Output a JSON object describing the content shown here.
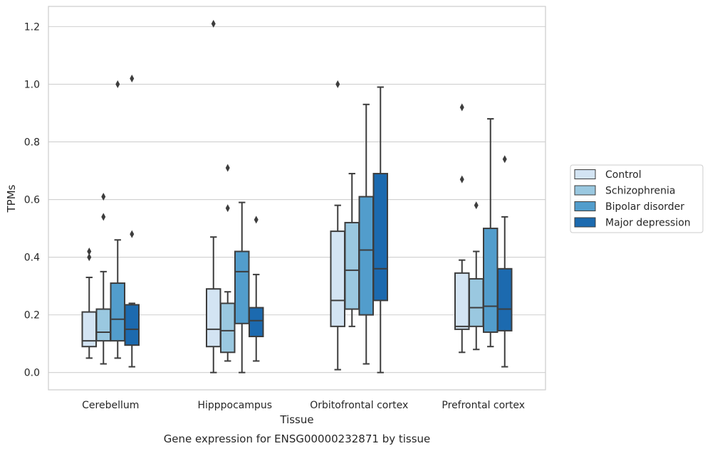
{
  "chart_data": {
    "type": "box",
    "xlabel": "Tissue",
    "ylabel": "TPMs",
    "caption": "Gene expression for ENSG00000232871 by tissue",
    "ylim": [
      -0.06,
      1.27
    ],
    "yticks": [
      "0.0",
      "0.2",
      "0.4",
      "0.6",
      "0.8",
      "1.0",
      "1.2"
    ],
    "grid": "horizontal",
    "legend_placement": "right",
    "categories": [
      "Cerebellum",
      "Hipppocampus",
      "Orbitofrontal cortex",
      "Prefrontal cortex"
    ],
    "series": [
      {
        "name": "Control",
        "color": "#d3e4f3",
        "boxes": [
          {
            "whislo": 0.05,
            "q1": 0.09,
            "med": 0.11,
            "q3": 0.21,
            "whishi": 0.33,
            "fliers": [
              0.4,
              0.42
            ]
          },
          {
            "whislo": 0.0,
            "q1": 0.09,
            "med": 0.15,
            "q3": 0.29,
            "whishi": 0.47,
            "fliers": [
              1.21
            ]
          },
          {
            "whislo": 0.01,
            "q1": 0.16,
            "med": 0.25,
            "q3": 0.49,
            "whishi": 0.58,
            "fliers": [
              1.0
            ]
          },
          {
            "whislo": 0.07,
            "q1": 0.15,
            "med": 0.16,
            "q3": 0.345,
            "whishi": 0.39,
            "fliers": [
              0.67,
              0.92
            ]
          }
        ]
      },
      {
        "name": "Schizophrenia",
        "color": "#9ac8e0",
        "boxes": [
          {
            "whislo": 0.03,
            "q1": 0.11,
            "med": 0.14,
            "q3": 0.22,
            "whishi": 0.35,
            "fliers": [
              0.54,
              0.61
            ]
          },
          {
            "whislo": 0.04,
            "q1": 0.07,
            "med": 0.145,
            "q3": 0.24,
            "whishi": 0.28,
            "fliers": [
              0.57,
              0.71
            ]
          },
          {
            "whislo": 0.16,
            "q1": 0.22,
            "med": 0.355,
            "q3": 0.52,
            "whishi": 0.69,
            "fliers": []
          },
          {
            "whislo": 0.08,
            "q1": 0.16,
            "med": 0.225,
            "q3": 0.325,
            "whishi": 0.42,
            "fliers": [
              0.58
            ]
          }
        ]
      },
      {
        "name": "Bipolar disorder",
        "color": "#529dcc",
        "boxes": [
          {
            "whislo": 0.05,
            "q1": 0.11,
            "med": 0.185,
            "q3": 0.31,
            "whishi": 0.46,
            "fliers": [
              1.0
            ]
          },
          {
            "whislo": 0.0,
            "q1": 0.17,
            "med": 0.35,
            "q3": 0.42,
            "whishi": 0.59,
            "fliers": []
          },
          {
            "whislo": 0.03,
            "q1": 0.2,
            "med": 0.425,
            "q3": 0.61,
            "whishi": 0.93,
            "fliers": []
          },
          {
            "whislo": 0.09,
            "q1": 0.14,
            "med": 0.23,
            "q3": 0.5,
            "whishi": 0.88,
            "fliers": []
          }
        ]
      },
      {
        "name": "Major depression",
        "color": "#1c6aaf",
        "boxes": [
          {
            "whislo": 0.02,
            "q1": 0.095,
            "med": 0.15,
            "q3": 0.235,
            "whishi": 0.24,
            "fliers": [
              0.48,
              1.02
            ]
          },
          {
            "whislo": 0.04,
            "q1": 0.125,
            "med": 0.18,
            "q3": 0.225,
            "whishi": 0.34,
            "fliers": [
              0.53
            ]
          },
          {
            "whislo": 0.0,
            "q1": 0.25,
            "med": 0.36,
            "q3": 0.69,
            "whishi": 0.99,
            "fliers": []
          },
          {
            "whislo": 0.02,
            "q1": 0.145,
            "med": 0.22,
            "q3": 0.36,
            "whishi": 0.54,
            "fliers": [
              0.74
            ]
          }
        ]
      }
    ]
  }
}
